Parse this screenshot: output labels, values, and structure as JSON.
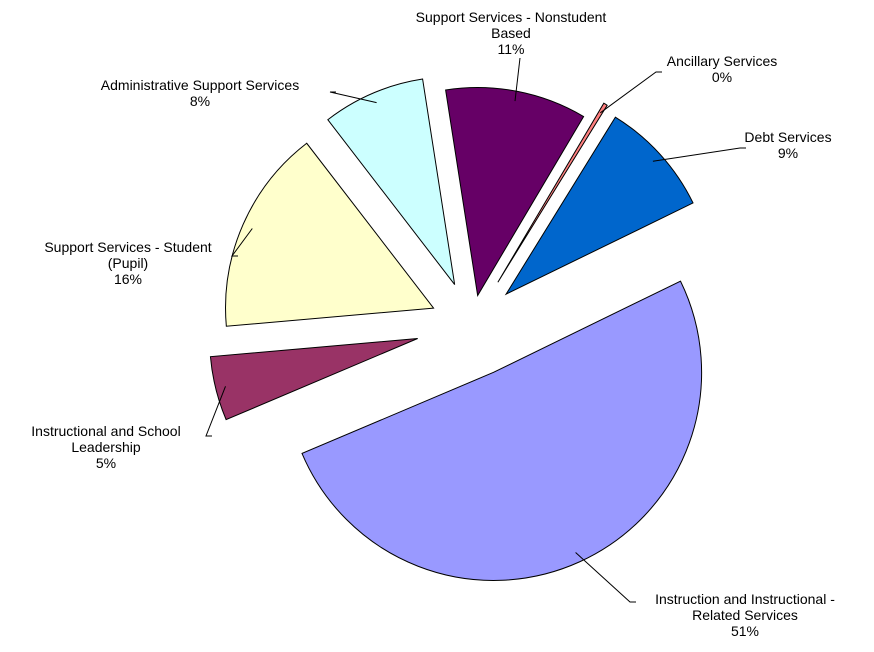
{
  "chart_data": {
    "type": "pie",
    "exploded": true,
    "start_angle_deg": 64,
    "direction": "clockwise",
    "slices": [
      {
        "label_lines": [
          "Instruction and Instructional -",
          "Related Services"
        ],
        "percent_label": "51%",
        "value": 51,
        "color": "#9999FF"
      },
      {
        "label_lines": [
          "Instructional and School",
          "Leadership"
        ],
        "percent_label": "5%",
        "value": 5,
        "color": "#993366"
      },
      {
        "label_lines": [
          "Support Services - Student",
          "(Pupil)"
        ],
        "percent_label": "16%",
        "value": 16,
        "color": "#FFFFCC"
      },
      {
        "label_lines": [
          "Administrative Support Services"
        ],
        "percent_label": "8%",
        "value": 8,
        "color": "#CCFFFF"
      },
      {
        "label_lines": [
          "Support Services - Nonstudent",
          "Based"
        ],
        "percent_label": "11%",
        "value": 11,
        "color": "#660066"
      },
      {
        "label_lines": [
          "Ancillary Services"
        ],
        "percent_label": "0%",
        "value": 0.3,
        "color": "#FF8080"
      },
      {
        "label_lines": [
          "Debt Services"
        ],
        "percent_label": "9%",
        "value": 9,
        "color": "#0066CC"
      }
    ]
  }
}
